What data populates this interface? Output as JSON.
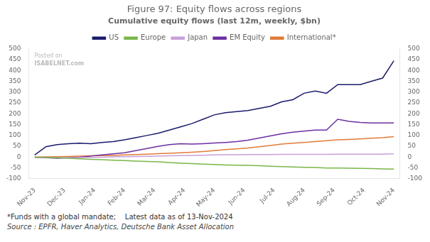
{
  "chart_data": {
    "type": "line",
    "title": "Figure 97: Equity flows across regions",
    "subtitle": "Cumulative equity flows (last 12m, weekly, $bn)",
    "annotations": [
      "*Funds with a global mandate;    Latest data as of 13-Nov-2024",
      "Source : EPFR, Haver Analytics, Deutsche Bank Asset Allocation",
      "Posted on",
      "ISABELNET.com"
    ],
    "x": [
      0,
      0.375,
      0.75,
      1.125,
      1.5,
      1.875,
      2.25,
      2.625,
      3,
      3.375,
      3.75,
      4.125,
      4.5,
      4.875,
      5.25,
      5.625,
      6,
      6.375,
      6.75,
      7.125,
      7.5,
      7.875,
      8.25,
      8.625,
      9,
      9.375,
      9.75,
      10.125,
      10.5,
      10.875,
      11.25,
      11.625,
      12
    ],
    "xlim": [
      -0.2,
      12.2
    ],
    "xticks": [
      {
        "value": 0,
        "label": "Nov-23"
      },
      {
        "value": 1,
        "label": "Dec-23"
      },
      {
        "value": 2,
        "label": "Jan-24"
      },
      {
        "value": 3,
        "label": "Feb-24"
      },
      {
        "value": 4,
        "label": "Mar-24"
      },
      {
        "value": 5,
        "label": "Apr-24"
      },
      {
        "value": 6,
        "label": "May-24"
      },
      {
        "value": 7,
        "label": "Jun-24"
      },
      {
        "value": 8,
        "label": "Jul-24"
      },
      {
        "value": 9,
        "label": "Aug-24"
      },
      {
        "value": 10,
        "label": "Sep-24"
      },
      {
        "value": 11,
        "label": "Oct-24"
      },
      {
        "value": 12,
        "label": "Nov-24"
      }
    ],
    "ylim": [
      -100,
      500
    ],
    "yticks": [
      -100,
      -50,
      0,
      50,
      100,
      150,
      200,
      250,
      300,
      350,
      400,
      450,
      500
    ],
    "y2lim": [
      -100,
      500
    ],
    "y2ticks": [
      -100,
      -50,
      0,
      50,
      100,
      150,
      200,
      250,
      300,
      350,
      400,
      450,
      500
    ],
    "grid": false,
    "legend": "top",
    "series": [
      {
        "name": "US",
        "color": "#1a1a6e",
        "values": [
          10,
          48,
          58,
          62,
          64,
          62,
          68,
          72,
          80,
          90,
          100,
          110,
          125,
          140,
          155,
          175,
          195,
          205,
          210,
          215,
          225,
          235,
          255,
          265,
          295,
          305,
          295,
          335,
          335,
          335,
          350,
          365,
          445
        ]
      },
      {
        "name": "Europe",
        "color": "#7ab648",
        "values": [
          0,
          -1,
          -3,
          -5,
          -8,
          -10,
          -12,
          -14,
          -16,
          -18,
          -20,
          -22,
          -25,
          -28,
          -30,
          -32,
          -34,
          -36,
          -37,
          -38,
          -40,
          -42,
          -44,
          -45,
          -47,
          -48,
          -50,
          -50,
          -51,
          -52,
          -53,
          -54,
          -55
        ]
      },
      {
        "name": "Japan",
        "color": "#c8a0d8",
        "values": [
          0,
          -1,
          -2,
          -3,
          -2,
          -1,
          0,
          1,
          2,
          3,
          4,
          5,
          6,
          7,
          8,
          9,
          10,
          11,
          11,
          12,
          12,
          12,
          13,
          13,
          13,
          13,
          13,
          14,
          14,
          14,
          14,
          14,
          15
        ]
      },
      {
        "name": "EM Equity",
        "color": "#6b2fa0",
        "values": [
          0,
          -3,
          -5,
          -3,
          0,
          5,
          10,
          15,
          20,
          30,
          40,
          50,
          58,
          62,
          60,
          62,
          65,
          68,
          72,
          78,
          88,
          98,
          108,
          115,
          120,
          125,
          125,
          175,
          165,
          160,
          158,
          158,
          158
        ]
      },
      {
        "name": "International*",
        "color": "#e07b39",
        "values": [
          0,
          1,
          2,
          3,
          5,
          6,
          7,
          8,
          10,
          12,
          14,
          16,
          18,
          20,
          23,
          26,
          30,
          35,
          38,
          42,
          48,
          54,
          60,
          64,
          68,
          72,
          76,
          80,
          82,
          84,
          87,
          90,
          95
        ]
      }
    ]
  }
}
